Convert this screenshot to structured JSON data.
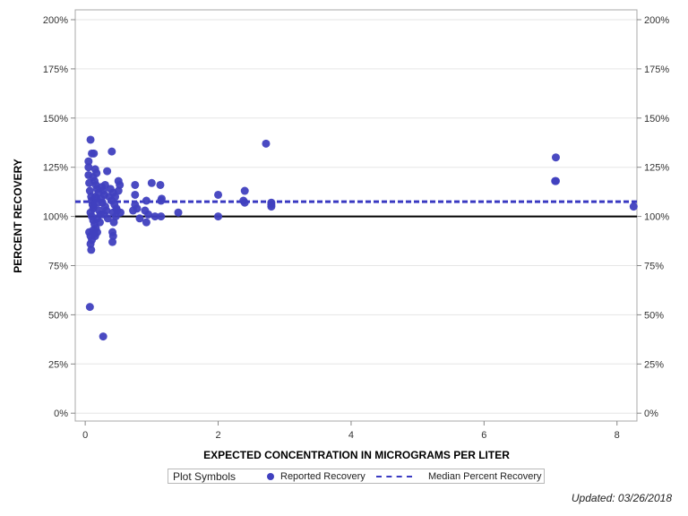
{
  "chart_data": {
    "type": "scatter",
    "xlabel": "EXPECTED CONCENTRATION IN MICROGRAMS PER LITER",
    "ylabel": "PERCENT RECOVERY",
    "xlim": [
      -0.15,
      8.3
    ],
    "ylim": [
      -4,
      205
    ],
    "x_ticks": [
      0,
      2,
      4,
      6,
      8
    ],
    "x_tick_labels": [
      "0",
      "2",
      "4",
      "6",
      "8"
    ],
    "y_ticks": [
      0,
      25,
      50,
      75,
      100,
      125,
      150,
      175,
      200
    ],
    "y_tick_labels": [
      "0%",
      "25%",
      "50%",
      "75%",
      "100%",
      "125%",
      "150%",
      "175%",
      "200%"
    ],
    "reference_line": 100,
    "median_percent_recovery": 107.5,
    "series": [
      {
        "name": "Reported Recovery",
        "points": [
          [
            0.05,
            128
          ],
          [
            0.05,
            125
          ],
          [
            0.05,
            121
          ],
          [
            0.08,
            139
          ],
          [
            0.1,
            132
          ],
          [
            0.13,
            132
          ],
          [
            0.06,
            117
          ],
          [
            0.07,
            113
          ],
          [
            0.09,
            110
          ],
          [
            0.1,
            108
          ],
          [
            0.11,
            106
          ],
          [
            0.12,
            104
          ],
          [
            0.08,
            102
          ],
          [
            0.1,
            100
          ],
          [
            0.12,
            98
          ],
          [
            0.14,
            96
          ],
          [
            0.06,
            92
          ],
          [
            0.08,
            90
          ],
          [
            0.1,
            88
          ],
          [
            0.08,
            86
          ],
          [
            0.09,
            83
          ],
          [
            0.07,
            54
          ],
          [
            0.12,
            93
          ],
          [
            0.14,
            91
          ],
          [
            0.15,
            90
          ],
          [
            0.16,
            94
          ],
          [
            0.18,
            92
          ],
          [
            0.15,
            124
          ],
          [
            0.17,
            122
          ],
          [
            0.12,
            120
          ],
          [
            0.14,
            118
          ],
          [
            0.16,
            116
          ],
          [
            0.18,
            114
          ],
          [
            0.2,
            112
          ],
          [
            0.15,
            110
          ],
          [
            0.17,
            109
          ],
          [
            0.19,
            107
          ],
          [
            0.13,
            105
          ],
          [
            0.21,
            103
          ],
          [
            0.23,
            101
          ],
          [
            0.18,
            99
          ],
          [
            0.22,
            97
          ],
          [
            0.25,
            115
          ],
          [
            0.27,
            113
          ],
          [
            0.29,
            111
          ],
          [
            0.24,
            109
          ],
          [
            0.26,
            107
          ],
          [
            0.3,
            105
          ],
          [
            0.32,
            103
          ],
          [
            0.28,
            101
          ],
          [
            0.34,
            99
          ],
          [
            0.36,
            110
          ],
          [
            0.3,
            116
          ],
          [
            0.33,
            123
          ],
          [
            0.4,
            133
          ],
          [
            0.38,
            114
          ],
          [
            0.42,
            112
          ],
          [
            0.45,
            110
          ],
          [
            0.4,
            108
          ],
          [
            0.44,
            106
          ],
          [
            0.47,
            104
          ],
          [
            0.42,
            102
          ],
          [
            0.46,
            100
          ],
          [
            0.43,
            97
          ],
          [
            0.41,
            92
          ],
          [
            0.42,
            90
          ],
          [
            0.41,
            87
          ],
          [
            0.5,
            118
          ],
          [
            0.52,
            116
          ],
          [
            0.5,
            113
          ],
          [
            0.48,
            103
          ],
          [
            0.53,
            102
          ],
          [
            0.27,
            39
          ],
          [
            0.75,
            116
          ],
          [
            0.75,
            111
          ],
          [
            0.75,
            106
          ],
          [
            0.78,
            104
          ],
          [
            0.72,
            103
          ],
          [
            0.82,
            99
          ],
          [
            0.92,
            108
          ],
          [
            0.9,
            103
          ],
          [
            0.95,
            101
          ],
          [
            0.92,
            97
          ],
          [
            1.0,
            117
          ],
          [
            1.13,
            116
          ],
          [
            1.15,
            109
          ],
          [
            1.14,
            108
          ],
          [
            1.05,
            100
          ],
          [
            1.14,
            100
          ],
          [
            1.4,
            102
          ],
          [
            2.0,
            111
          ],
          [
            2.0,
            100
          ],
          [
            2.38,
            108
          ],
          [
            2.4,
            113
          ],
          [
            2.4,
            107
          ],
          [
            2.72,
            137
          ],
          [
            2.8,
            107
          ],
          [
            2.8,
            106
          ],
          [
            2.8,
            105
          ],
          [
            7.08,
            130
          ],
          [
            7.08,
            118
          ],
          [
            7.07,
            118
          ],
          [
            8.25,
            105
          ]
        ]
      },
      {
        "name": "Median Percent Recovery",
        "value": 107.5
      }
    ]
  },
  "legend": {
    "title": "Plot Symbols",
    "item1": "Reported Recovery",
    "item2": "Median Percent Recovery"
  },
  "footer": {
    "updated": "Updated: 03/26/2018"
  },
  "colors": {
    "marker": "#4040bf",
    "reference": "#000000",
    "median": "#3a3ac2",
    "grid": "#e6e6e6",
    "frame": "#a8a8a8"
  }
}
